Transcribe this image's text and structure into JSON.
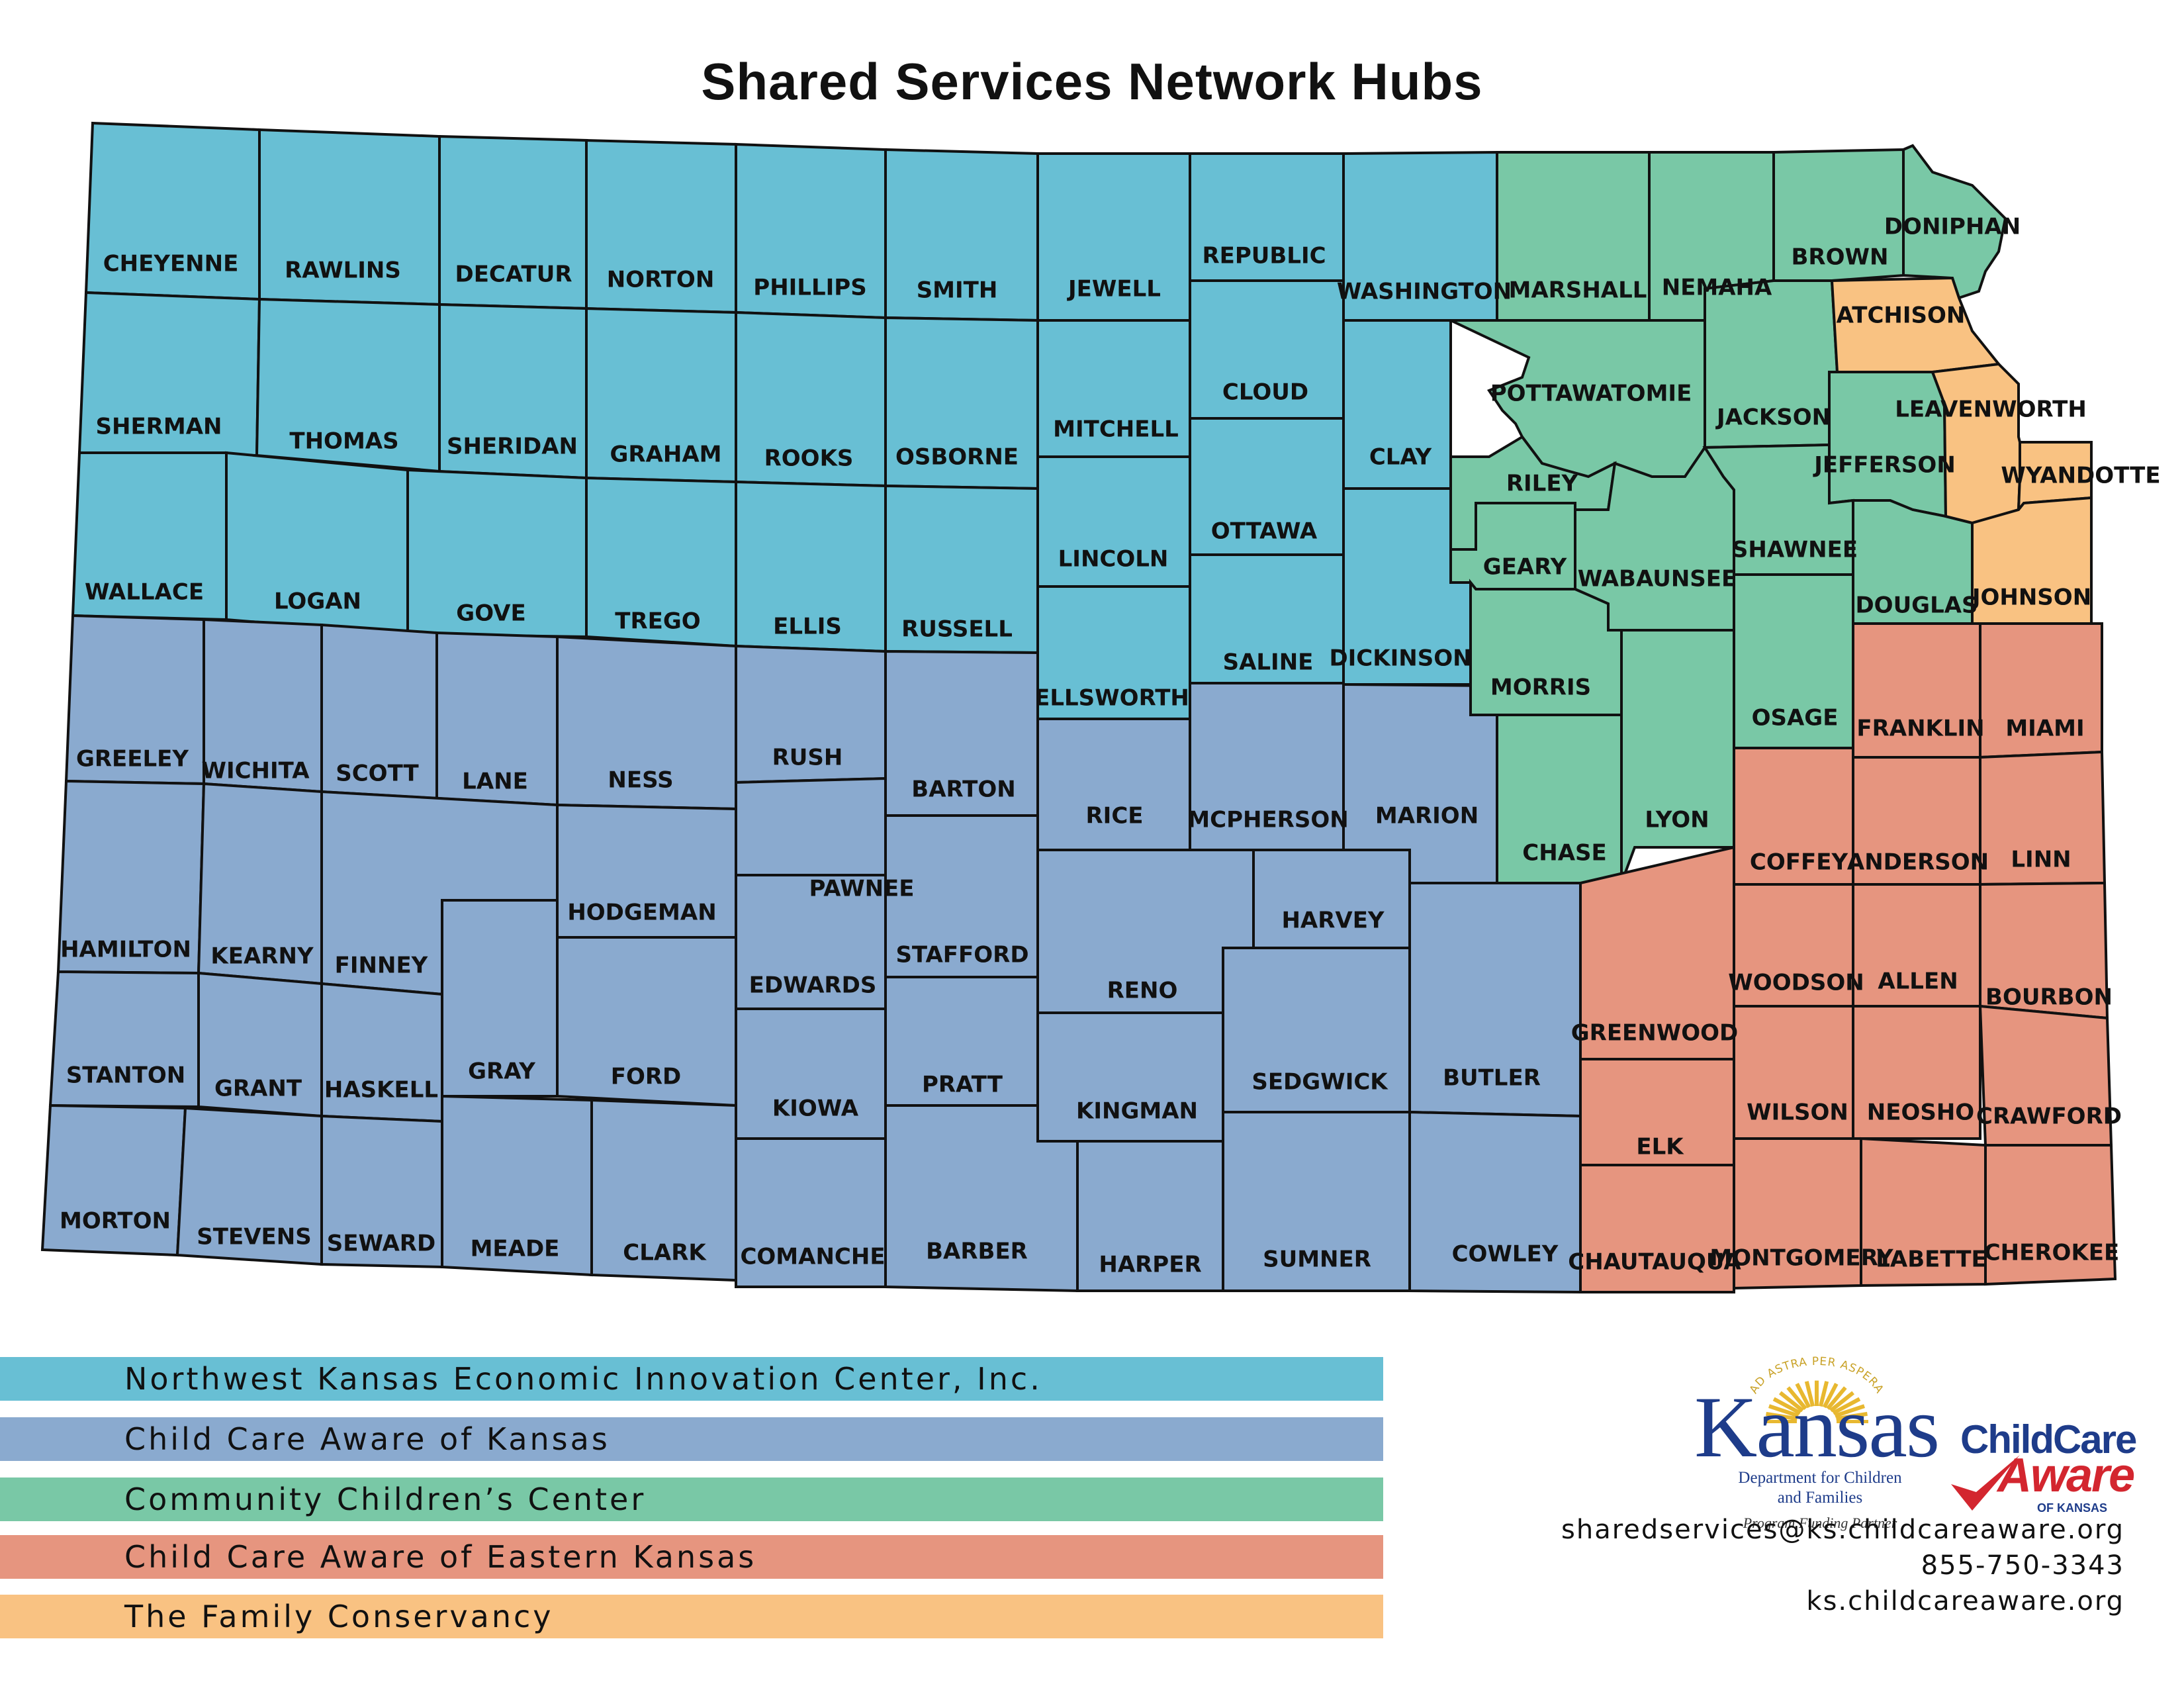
{
  "title": "Shared Services Network Hubs",
  "colors": {
    "northwest": "#68bfd4",
    "cca_kansas": "#8aaacf",
    "community": "#79c8a6",
    "eastern": "#e6957f",
    "family": "#f9c282"
  },
  "counties": [
    {
      "name": "CHEYENNE",
      "hub": "northwest"
    },
    {
      "name": "RAWLINS",
      "hub": "northwest"
    },
    {
      "name": "DECATUR",
      "hub": "northwest"
    },
    {
      "name": "NORTON",
      "hub": "northwest"
    },
    {
      "name": "PHILLIPS",
      "hub": "northwest"
    },
    {
      "name": "SMITH",
      "hub": "northwest"
    },
    {
      "name": "JEWELL",
      "hub": "northwest"
    },
    {
      "name": "REPUBLIC",
      "hub": "northwest"
    },
    {
      "name": "WASHINGTON",
      "hub": "northwest"
    },
    {
      "name": "SHERMAN",
      "hub": "northwest"
    },
    {
      "name": "THOMAS",
      "hub": "northwest"
    },
    {
      "name": "SHERIDAN",
      "hub": "northwest"
    },
    {
      "name": "GRAHAM",
      "hub": "northwest"
    },
    {
      "name": "ROOKS",
      "hub": "northwest"
    },
    {
      "name": "OSBORNE",
      "hub": "northwest"
    },
    {
      "name": "MITCHELL",
      "hub": "northwest"
    },
    {
      "name": "CLOUD",
      "hub": "northwest"
    },
    {
      "name": "CLAY",
      "hub": "northwest"
    },
    {
      "name": "WALLACE",
      "hub": "northwest"
    },
    {
      "name": "LOGAN",
      "hub": "northwest"
    },
    {
      "name": "GOVE",
      "hub": "northwest"
    },
    {
      "name": "TREGO",
      "hub": "northwest"
    },
    {
      "name": "ELLIS",
      "hub": "northwest"
    },
    {
      "name": "RUSSELL",
      "hub": "northwest"
    },
    {
      "name": "LINCOLN",
      "hub": "northwest"
    },
    {
      "name": "OTTAWA",
      "hub": "northwest"
    },
    {
      "name": "SALINE",
      "hub": "northwest"
    },
    {
      "name": "DICKINSON",
      "hub": "northwest"
    },
    {
      "name": "ELLSWORTH",
      "hub": "northwest"
    },
    {
      "name": "GREELEY",
      "hub": "cca_kansas"
    },
    {
      "name": "WICHITA",
      "hub": "cca_kansas"
    },
    {
      "name": "SCOTT",
      "hub": "cca_kansas"
    },
    {
      "name": "LANE",
      "hub": "cca_kansas"
    },
    {
      "name": "NESS",
      "hub": "cca_kansas"
    },
    {
      "name": "RUSH",
      "hub": "cca_kansas"
    },
    {
      "name": "BARTON",
      "hub": "cca_kansas"
    },
    {
      "name": "RICE",
      "hub": "cca_kansas"
    },
    {
      "name": "MCPHERSON",
      "hub": "cca_kansas"
    },
    {
      "name": "MARION",
      "hub": "cca_kansas"
    },
    {
      "name": "HAMILTON",
      "hub": "cca_kansas"
    },
    {
      "name": "KEARNY",
      "hub": "cca_kansas"
    },
    {
      "name": "FINNEY",
      "hub": "cca_kansas"
    },
    {
      "name": "HODGEMAN",
      "hub": "cca_kansas"
    },
    {
      "name": "PAWNEE",
      "hub": "cca_kansas"
    },
    {
      "name": "STAFFORD",
      "hub": "cca_kansas"
    },
    {
      "name": "EDWARDS",
      "hub": "cca_kansas"
    },
    {
      "name": "RENO",
      "hub": "cca_kansas"
    },
    {
      "name": "HARVEY",
      "hub": "cca_kansas"
    },
    {
      "name": "STANTON",
      "hub": "cca_kansas"
    },
    {
      "name": "GRANT",
      "hub": "cca_kansas"
    },
    {
      "name": "HASKELL",
      "hub": "cca_kansas"
    },
    {
      "name": "GRAY",
      "hub": "cca_kansas"
    },
    {
      "name": "FORD",
      "hub": "cca_kansas"
    },
    {
      "name": "KIOWA",
      "hub": "cca_kansas"
    },
    {
      "name": "PRATT",
      "hub": "cca_kansas"
    },
    {
      "name": "KINGMAN",
      "hub": "cca_kansas"
    },
    {
      "name": "SEDGWICK",
      "hub": "cca_kansas"
    },
    {
      "name": "BUTLER",
      "hub": "cca_kansas"
    },
    {
      "name": "MORTON",
      "hub": "cca_kansas"
    },
    {
      "name": "STEVENS",
      "hub": "cca_kansas"
    },
    {
      "name": "SEWARD",
      "hub": "cca_kansas"
    },
    {
      "name": "MEADE",
      "hub": "cca_kansas"
    },
    {
      "name": "CLARK",
      "hub": "cca_kansas"
    },
    {
      "name": "COMANCHE",
      "hub": "cca_kansas"
    },
    {
      "name": "BARBER",
      "hub": "cca_kansas"
    },
    {
      "name": "HARPER",
      "hub": "cca_kansas"
    },
    {
      "name": "SUMNER",
      "hub": "cca_kansas"
    },
    {
      "name": "COWLEY",
      "hub": "cca_kansas"
    },
    {
      "name": "MARSHALL",
      "hub": "community"
    },
    {
      "name": "NEMAHA",
      "hub": "community"
    },
    {
      "name": "BROWN",
      "hub": "community"
    },
    {
      "name": "DONIPHAN",
      "hub": "community"
    },
    {
      "name": "POTTAWATOMIE",
      "hub": "community"
    },
    {
      "name": "JACKSON",
      "hub": "community"
    },
    {
      "name": "JEFFERSON",
      "hub": "community"
    },
    {
      "name": "RILEY",
      "hub": "community"
    },
    {
      "name": "GEARY",
      "hub": "community"
    },
    {
      "name": "WABAUNSEE",
      "hub": "community"
    },
    {
      "name": "SHAWNEE",
      "hub": "community"
    },
    {
      "name": "DOUGLAS",
      "hub": "community"
    },
    {
      "name": "MORRIS",
      "hub": "community"
    },
    {
      "name": "OSAGE",
      "hub": "community"
    },
    {
      "name": "CHASE",
      "hub": "community"
    },
    {
      "name": "LYON",
      "hub": "community"
    },
    {
      "name": "FRANKLIN",
      "hub": "eastern"
    },
    {
      "name": "MIAMI",
      "hub": "eastern"
    },
    {
      "name": "COFFEY",
      "hub": "eastern"
    },
    {
      "name": "ANDERSON",
      "hub": "eastern"
    },
    {
      "name": "LINN",
      "hub": "eastern"
    },
    {
      "name": "WOODSON",
      "hub": "eastern"
    },
    {
      "name": "ALLEN",
      "hub": "eastern"
    },
    {
      "name": "BOURBON",
      "hub": "eastern"
    },
    {
      "name": "GREENWOOD",
      "hub": "eastern"
    },
    {
      "name": "WILSON",
      "hub": "eastern"
    },
    {
      "name": "NEOSHO",
      "hub": "eastern"
    },
    {
      "name": "CRAWFORD",
      "hub": "eastern"
    },
    {
      "name": "ELK",
      "hub": "eastern"
    },
    {
      "name": "CHAUTAUQUA",
      "hub": "eastern"
    },
    {
      "name": "MONTGOMERY",
      "hub": "eastern"
    },
    {
      "name": "LABETTE",
      "hub": "eastern"
    },
    {
      "name": "CHEROKEE",
      "hub": "eastern"
    },
    {
      "name": "ATCHISON",
      "hub": "family"
    },
    {
      "name": "LEAVENWORTH",
      "hub": "family"
    },
    {
      "name": "WYANDOTTE",
      "hub": "family"
    },
    {
      "name": "JOHNSON",
      "hub": "family"
    }
  ],
  "legend": [
    {
      "label": "Northwest Kansas Economic Innovation Center, Inc.",
      "color": "#68bfd4"
    },
    {
      "label": "Child Care Aware of Kansas",
      "color": "#8aaacf"
    },
    {
      "label": "Community Children’s Center",
      "color": "#79c8a6"
    },
    {
      "label": "Child Care Aware of Eastern Kansas",
      "color": "#e6957f"
    },
    {
      "label": "The Family Conservancy",
      "color": "#f9c282"
    }
  ],
  "logos": {
    "kansas_word": "Kansas",
    "kansas_motto": "AD ASTRA PER ASPERA",
    "kansas_sub_1": "Department for Children",
    "kansas_sub_2": "and Families",
    "kansas_partner": "Program Funding Partner",
    "cca_line1": "ChildCare",
    "cca_line2": "Aware",
    "cca_line3": "OF KANSAS"
  },
  "contact": {
    "email": "sharedservices@ks.childcareaware.org",
    "phone": "855-750-3343",
    "website": "ks.childcareaware.org"
  }
}
